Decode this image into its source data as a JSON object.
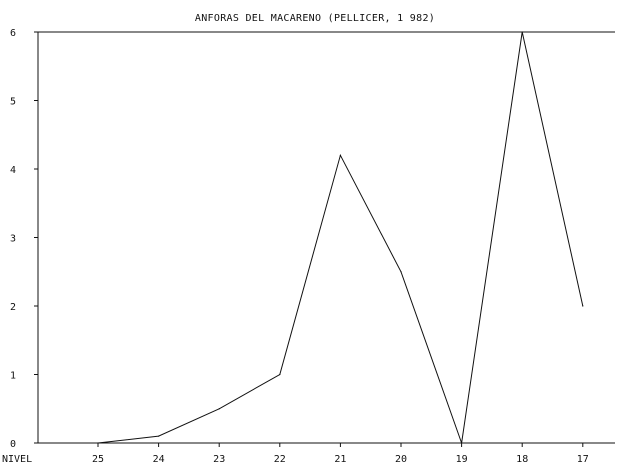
{
  "chart_data": {
    "type": "line",
    "title": "ANFORAS DEL MACARENO (PELLICER, 1 982)",
    "xlabel": "NIVEL",
    "ylabel": "",
    "categories": [
      "25",
      "24",
      "23",
      "22",
      "21",
      "20",
      "19",
      "18",
      "17"
    ],
    "series": [
      {
        "values": [
          0,
          0.1,
          0.5,
          1,
          4.2,
          2.5,
          0,
          6,
          2
        ]
      }
    ],
    "ylim": [
      0,
      6
    ],
    "yticks": [
      "0",
      "1",
      "2",
      "3",
      "4",
      "5",
      "6"
    ],
    "grid": false,
    "legend": "none",
    "colors": {
      "line": "#111111",
      "axis": "#111111",
      "background": "#ffffff"
    }
  }
}
